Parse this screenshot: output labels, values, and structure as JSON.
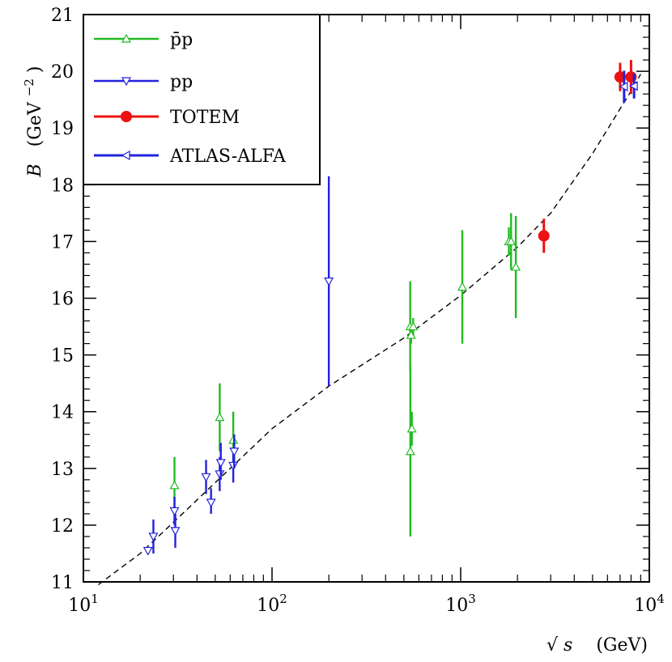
{
  "chart_data": {
    "type": "scatter",
    "title": "",
    "xlabel": "√s   (GeV)",
    "xlabel_radical": "√",
    "xlabel_var": "s",
    "xlabel_unit": "(GeV)",
    "ylabel_var": "B",
    "ylabel_unit": "(GeV",
    "ylabel_exp": "−2",
    "ylabel_close": ")",
    "xscale": "log",
    "xlim": [
      10,
      10000
    ],
    "ylim": [
      11,
      21
    ],
    "x_ticks": [
      {
        "value": 10,
        "base": "10",
        "exp": "1"
      },
      {
        "value": 100,
        "base": "10",
        "exp": "2"
      },
      {
        "value": 1000,
        "base": "10",
        "exp": "3"
      },
      {
        "value": 10000,
        "base": "10",
        "exp": "4"
      }
    ],
    "y_ticks": [
      11,
      12,
      13,
      14,
      15,
      16,
      17,
      18,
      19,
      20,
      21
    ],
    "legend_position": "top-left",
    "colors": {
      "ppbar": "#22bb22",
      "pp": "#2222dd",
      "totem": "#ee1111",
      "atlas": "#2222dd",
      "fit": "#000000"
    },
    "series": [
      {
        "name": "p̄p",
        "key": "ppbar",
        "marker": "triangle-up-open",
        "points": [
          {
            "x": 30.4,
            "y": 12.7,
            "lo": 12.2,
            "hi": 13.2
          },
          {
            "x": 52.8,
            "y": 13.9,
            "lo": 13.3,
            "hi": 14.5
          },
          {
            "x": 62.3,
            "y": 13.5,
            "lo": 13.0,
            "hi": 14.0
          },
          {
            "x": 540,
            "y": 15.5,
            "lo": 14.7,
            "hi": 16.3
          },
          {
            "x": 546,
            "y": 15.35,
            "lo": 15.2,
            "hi": 15.5
          },
          {
            "x": 560,
            "y": 15.5,
            "lo": 15.35,
            "hi": 15.65
          },
          {
            "x": 541,
            "y": 13.3,
            "lo": 11.8,
            "hi": 14.8
          },
          {
            "x": 551,
            "y": 13.7,
            "lo": 13.4,
            "hi": 14.0
          },
          {
            "x": 1020,
            "y": 16.2,
            "lo": 15.2,
            "hi": 17.2
          },
          {
            "x": 1800,
            "y": 17.0,
            "lo": 16.75,
            "hi": 17.25
          },
          {
            "x": 1850,
            "y": 17.0,
            "lo": 16.5,
            "hi": 17.5
          },
          {
            "x": 1960,
            "y": 16.55,
            "lo": 15.65,
            "hi": 17.45
          }
        ]
      },
      {
        "name": "pp",
        "key": "pp",
        "marker": "triangle-down-open",
        "points": [
          {
            "x": 22,
            "y": 11.55,
            "lo": 11.5,
            "hi": 11.6
          },
          {
            "x": 23.5,
            "y": 11.8,
            "lo": 11.5,
            "hi": 12.1
          },
          {
            "x": 30.4,
            "y": 12.25,
            "lo": 12.0,
            "hi": 12.5
          },
          {
            "x": 30.7,
            "y": 11.9,
            "lo": 11.6,
            "hi": 12.2
          },
          {
            "x": 44.7,
            "y": 12.85,
            "lo": 12.55,
            "hi": 13.15
          },
          {
            "x": 47.5,
            "y": 12.4,
            "lo": 12.2,
            "hi": 12.65
          },
          {
            "x": 52.8,
            "y": 12.9,
            "lo": 12.6,
            "hi": 13.2
          },
          {
            "x": 53.5,
            "y": 13.1,
            "lo": 12.8,
            "hi": 13.45
          },
          {
            "x": 62.3,
            "y": 13.05,
            "lo": 12.75,
            "hi": 13.35
          },
          {
            "x": 63,
            "y": 13.3,
            "lo": 13.0,
            "hi": 13.6
          },
          {
            "x": 200,
            "y": 16.3,
            "lo": 14.45,
            "hi": 18.15
          }
        ]
      },
      {
        "name": "TOTEM",
        "key": "totem",
        "marker": "circle-filled",
        "points": [
          {
            "x": 2760,
            "y": 17.1,
            "lo": 16.8,
            "hi": 17.4
          },
          {
            "x": 7000,
            "y": 19.9,
            "lo": 19.65,
            "hi": 20.15
          },
          {
            "x": 8000,
            "y": 19.9,
            "lo": 19.6,
            "hi": 20.2
          }
        ]
      },
      {
        "name": "ATLAS-ALFA",
        "key": "atlas",
        "marker": "triangle-left-open",
        "points": [
          {
            "x": 7350,
            "y": 19.73,
            "lo": 19.45,
            "hi": 20.01
          },
          {
            "x": 8300,
            "y": 19.74,
            "lo": 19.52,
            "hi": 19.96
          }
        ]
      }
    ],
    "fit_curve": {
      "name": "fit",
      "style": "dashed",
      "points": [
        {
          "x": 12,
          "y": 10.95
        },
        {
          "x": 20,
          "y": 11.5
        },
        {
          "x": 30,
          "y": 12.05
        },
        {
          "x": 50,
          "y": 12.75
        },
        {
          "x": 100,
          "y": 13.7
        },
        {
          "x": 200,
          "y": 14.45
        },
        {
          "x": 500,
          "y": 15.3
        },
        {
          "x": 1000,
          "y": 16.05
        },
        {
          "x": 2000,
          "y": 16.9
        },
        {
          "x": 3000,
          "y": 17.5
        },
        {
          "x": 5000,
          "y": 18.55
        },
        {
          "x": 8000,
          "y": 19.65
        },
        {
          "x": 9000,
          "y": 19.95
        }
      ]
    }
  }
}
